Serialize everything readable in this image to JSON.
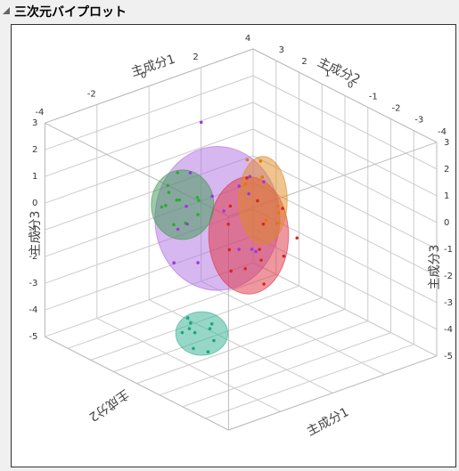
{
  "header": {
    "title": "三次元バイプロット"
  },
  "chart_data": {
    "type": "scatter3d",
    "xlabel": "主成分1",
    "ylabel": "主成分2",
    "zlabel": "主成分3",
    "xlim": [
      -4,
      4
    ],
    "ylim": [
      -4,
      4
    ],
    "zlim": [
      -5,
      3
    ],
    "xticks": [
      -4,
      -2,
      0,
      2,
      4
    ],
    "yticks": [
      -4,
      -3,
      -2,
      -1,
      0,
      1,
      2,
      3
    ],
    "zticks": [
      -5,
      -4,
      -3,
      -2,
      -1,
      0,
      1,
      2,
      3
    ],
    "grid": true,
    "ellipsoids": [
      {
        "color": "#b070e0",
        "center": [
          -0.9,
          0,
          0.1
        ],
        "radii": [
          1.8,
          1.8,
          2.5
        ]
      },
      {
        "color": "#e03040",
        "center": [
          0.3,
          0,
          -0.95
        ],
        "radii": [
          1.15,
          1.15,
          2.1
        ]
      },
      {
        "color": "#e08a20",
        "center": [
          0.85,
          0,
          0.17
        ],
        "radii": [
          0.7,
          0.7,
          1.6
        ]
      },
      {
        "color": "#3a9a50",
        "center": [
          -2.24,
          0,
          1.08
        ],
        "radii": [
          0.9,
          0.9,
          1.2
        ]
      },
      {
        "color": "#30b090",
        "center": [
          -1.5,
          0,
          -4
        ],
        "radii": [
          0.75,
          0.75,
          0.7
        ]
      }
    ],
    "series": [
      {
        "color": "#2ea83a",
        "x": [
          -2.5,
          -2.0,
          -2.8,
          -1.9,
          -2.3,
          -2.6,
          -2.1,
          -1.7,
          -2.9,
          -2.4,
          -2.0,
          -2.2
        ],
        "y": [
          0.3,
          -0.4,
          0.1,
          0.6,
          -0.2,
          0.5,
          0.8,
          -0.1,
          -0.5,
          0.2,
          0.4,
          -0.6
        ],
        "z": [
          1.5,
          0.8,
          1.2,
          1.9,
          0.5,
          0.9,
          1.4,
          1.1,
          1.7,
          0.3,
          1.0,
          1.6
        ]
      },
      {
        "color": "#9a3ad8",
        "x": [
          -1.5,
          -0.4,
          -1.0,
          0.2,
          -2.0,
          -0.8,
          -1.3,
          0.4,
          -0.2,
          -1.8,
          -0.6,
          -1.1,
          0.0,
          -1.6,
          -0.3,
          -0.9
        ],
        "y": [
          0.5,
          -0.8,
          1.2,
          0.3,
          -0.4,
          -1.3,
          0.9,
          -0.2,
          1.5,
          0.7,
          -0.6,
          0.0,
          -1.0,
          1.1,
          0.4,
          -1.5
        ],
        "z": [
          1.8,
          1.2,
          -0.6,
          0.8,
          -1.0,
          2.2,
          0.3,
          -1.5,
          2.8,
          -0.3,
          -0.9,
          1.0,
          1.6,
          -1.8,
          0.0,
          -0.4
        ]
      },
      {
        "color": "#d02828",
        "x": [
          0.6,
          0.0,
          0.9,
          -0.2,
          0.4,
          1.1,
          0.2,
          0.7,
          -0.1,
          0.5,
          1.3,
          0.3,
          0.8,
          0.1
        ],
        "y": [
          -0.3,
          0.5,
          -0.8,
          0.2,
          1.0,
          -1.2,
          -0.5,
          0.6,
          -1.0,
          0.3,
          -0.4,
          0.8,
          -0.1,
          -0.7
        ],
        "z": [
          -0.5,
          -1.6,
          0.2,
          -2.2,
          -1.0,
          -0.8,
          0.6,
          -2.6,
          -1.3,
          1.0,
          -1.9,
          -0.2,
          -2.9,
          -1.1
        ]
      },
      {
        "color": "#e07810",
        "x": [
          1.0,
          0.7,
          1.2,
          0.9,
          0.6,
          1.3,
          0.8,
          1.1
        ],
        "y": [
          0.2,
          -0.3,
          0.5,
          -0.6,
          0.4,
          -0.1,
          0.7,
          -0.4
        ],
        "z": [
          0.9,
          -0.4,
          1.3,
          0.2,
          1.6,
          -0.8,
          0.5,
          -0.2
        ]
      },
      {
        "color": "#18a880",
        "x": [
          -1.8,
          -1.3,
          -1.6,
          -1.1,
          -2.0,
          -1.4,
          -1.7,
          -1.2,
          -1.5,
          -1.9
        ],
        "y": [
          0.2,
          -0.3,
          0.5,
          0.1,
          -0.2,
          0.6,
          -0.5,
          -0.1,
          0.3,
          0.4
        ],
        "z": [
          -3.8,
          -4.2,
          -3.6,
          -4.0,
          -4.3,
          -3.9,
          -4.4,
          -3.7,
          -4.1,
          -4.0
        ]
      }
    ]
  }
}
